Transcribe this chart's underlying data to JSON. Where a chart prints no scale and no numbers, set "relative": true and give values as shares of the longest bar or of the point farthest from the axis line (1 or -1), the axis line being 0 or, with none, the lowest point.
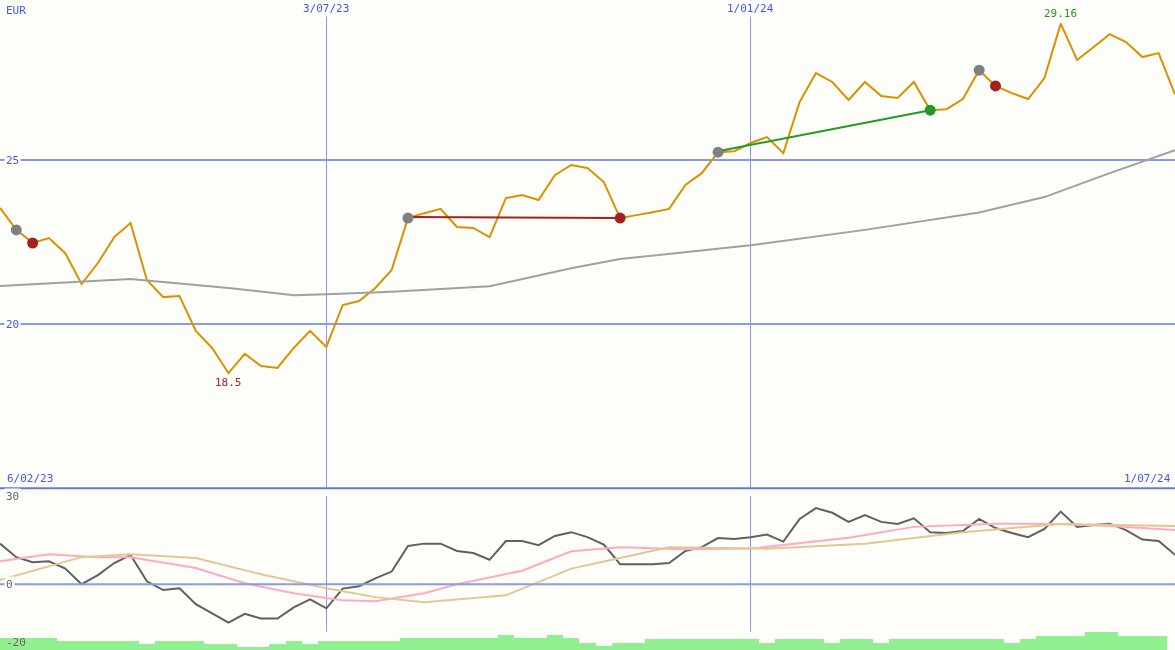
{
  "chart_data": [
    {
      "type": "line",
      "ylabel": "EUR",
      "x": [
        "2023-02-13",
        "2023-02-20",
        "2023-02-27",
        "2023-03-06",
        "2023-03-13",
        "2023-03-20",
        "2023-03-27",
        "2023-04-03",
        "2023-04-10",
        "2023-04-17",
        "2023-04-24",
        "2023-05-01",
        "2023-05-08",
        "2023-05-15",
        "2023-05-22",
        "2023-05-29",
        "2023-06-05",
        "2023-06-12",
        "2023-06-19",
        "2023-06-26",
        "2023-07-03",
        "2023-07-10",
        "2023-07-17",
        "2023-07-24",
        "2023-07-31",
        "2023-08-07",
        "2023-08-14",
        "2023-08-21",
        "2023-08-28",
        "2023-09-04",
        "2023-09-11",
        "2023-09-18",
        "2023-09-25",
        "2023-10-02",
        "2023-10-09",
        "2023-10-16",
        "2023-10-23",
        "2023-10-30",
        "2023-11-06",
        "2023-11-13",
        "2023-11-20",
        "2023-11-27",
        "2023-12-04",
        "2023-12-11",
        "2023-12-18",
        "2023-12-25",
        "2024-01-01",
        "2024-01-08",
        "2024-01-15",
        "2024-01-22",
        "2024-01-29",
        "2024-02-05",
        "2024-02-12",
        "2024-02-19",
        "2024-02-26",
        "2024-03-04",
        "2024-03-11",
        "2024-03-18",
        "2024-03-25",
        "2024-04-01",
        "2024-04-08",
        "2024-04-15",
        "2024-04-22",
        "2024-04-29",
        "2024-05-06",
        "2024-05-13",
        "2024-05-20",
        "2024-05-27",
        "2024-06-03",
        "2024-06-10",
        "2024-06-17",
        "2024-06-24",
        "2024-07-01"
      ],
      "xlim": [
        "2023-02-13",
        "2024-07-01"
      ],
      "xticks": [
        {
          "value": "2023-07-03",
          "label": "3/07/23"
        },
        {
          "value": "2024-01-01",
          "label": "1/01/24"
        }
      ],
      "ylim": [
        15.03,
        29.88
      ],
      "yticks": [
        20,
        25
      ],
      "grid": true,
      "annotations": [
        "6/02/23",
        "1/07/24",
        {
          "text": "18.5",
          "x": "2023-05-22",
          "y": 18.5
        },
        "29.16"
      ],
      "series": [
        {
          "color": "#d99100",
          "marker": "none",
          "values": [
            23.54,
            22.87,
            22.47,
            22.62,
            22.16,
            21.22,
            21.86,
            22.65,
            23.08,
            21.34,
            20.82,
            20.85,
            19.79,
            19.27,
            18.5,
            19.09,
            18.72,
            18.66,
            19.27,
            19.79,
            19.3,
            20.58,
            20.7,
            21.1,
            21.65,
            23.23,
            23.38,
            23.51,
            22.96,
            22.93,
            22.65,
            23.84,
            23.93,
            23.78,
            24.54,
            24.85,
            24.76,
            24.33,
            23.23,
            23.32,
            23.41,
            23.51,
            24.24,
            24.6,
            25.24,
            25.27,
            25.52,
            25.7,
            25.21,
            26.77,
            27.65,
            27.38,
            26.83,
            27.38,
            26.95,
            26.89,
            27.38,
            26.52,
            26.55,
            26.86,
            27.74,
            27.26,
            27.04,
            26.86,
            27.5,
            29.16,
            28.05,
            28.44,
            28.84,
            28.6,
            28.14,
            28.26,
            27.0
          ]
        },
        {
          "color": "#a0a0a0",
          "marker": "none",
          "x": [
            "2023-02-13",
            "2023-04-10",
            "2023-05-22",
            "2023-06-19",
            "2023-07-03",
            "2023-07-31",
            "2023-09-11",
            "2023-10-16",
            "2023-11-06",
            "2024-01-01",
            "2024-02-19",
            "2024-04-08",
            "2024-05-06",
            "2024-06-03",
            "2024-07-01"
          ],
          "values": [
            21.16,
            21.37,
            21.1,
            20.88,
            20.91,
            20.98,
            21.15,
            21.7,
            21.98,
            22.4,
            22.87,
            23.4,
            23.87,
            24.6,
            25.3
          ]
        },
        {
          "color": "#a52020",
          "marker": "none",
          "x": [
            "2023-08-07",
            "2023-11-06"
          ],
          "values": [
            23.26,
            23.23
          ]
        },
        {
          "color": "#229922",
          "marker": "none",
          "x": [
            "2023-12-18",
            "2024-03-18"
          ],
          "values": [
            25.27,
            26.52
          ]
        },
        {
          "type": "scatter",
          "marker": "circle",
          "color": "#808080",
          "x": [
            "2023-02-20",
            "2023-08-07",
            "2023-12-18",
            "2024-04-08"
          ],
          "values": [
            22.87,
            23.23,
            25.24,
            27.74
          ]
        },
        {
          "type": "scatter",
          "marker": "circle",
          "colors": [
            "#a52020",
            "#a52020",
            "#229922",
            "#a52020"
          ],
          "x": [
            "2023-02-27",
            "2023-11-06",
            "2024-03-18",
            "2024-04-15"
          ],
          "values": [
            22.47,
            23.23,
            26.52,
            27.26
          ]
        }
      ]
    },
    {
      "type": "line",
      "x": [
        "2023-02-13",
        "2023-02-20",
        "2023-02-27",
        "2023-03-06",
        "2023-03-13",
        "2023-03-20",
        "2023-03-27",
        "2023-04-03",
        "2023-04-10",
        "2023-04-17",
        "2023-04-24",
        "2023-05-01",
        "2023-05-08",
        "2023-05-15",
        "2023-05-22",
        "2023-05-29",
        "2023-06-05",
        "2023-06-12",
        "2023-06-19",
        "2023-06-26",
        "2023-07-03",
        "2023-07-10",
        "2023-07-17",
        "2023-07-24",
        "2023-07-31",
        "2023-08-07",
        "2023-08-14",
        "2023-08-21",
        "2023-08-28",
        "2023-09-04",
        "2023-09-11",
        "2023-09-18",
        "2023-09-25",
        "2023-10-02",
        "2023-10-09",
        "2023-10-16",
        "2023-10-23",
        "2023-10-30",
        "2023-11-06",
        "2023-11-13",
        "2023-11-20",
        "2023-11-27",
        "2023-12-04",
        "2023-12-11",
        "2023-12-18",
        "2023-12-25",
        "2024-01-01",
        "2024-01-08",
        "2024-01-15",
        "2024-01-22",
        "2024-01-29",
        "2024-02-05",
        "2024-02-12",
        "2024-02-19",
        "2024-02-26",
        "2024-03-04",
        "2024-03-11",
        "2024-03-18",
        "2024-03-25",
        "2024-04-01",
        "2024-04-08",
        "2024-04-15",
        "2024-04-22",
        "2024-04-29",
        "2024-05-06",
        "2024-05-13",
        "2024-05-20",
        "2024-05-27",
        "2024-06-03",
        "2024-06-10",
        "2024-06-17",
        "2024-06-24",
        "2024-07-01"
      ],
      "xlim": [
        "2023-02-13",
        "2024-07-01"
      ],
      "xticks": [
        {
          "value": "2023-07-03",
          "label": null
        },
        {
          "value": "2024-01-01",
          "label": null
        }
      ],
      "ylim": [
        -20,
        30
      ],
      "yticks": [
        30,
        0,
        -20
      ],
      "grid": "x",
      "tick_labels": "y",
      "ref_lines": [
        {
          "axis": "y",
          "value": 0,
          "color": "#8899ee"
        }
      ],
      "series": [
        {
          "color": "#606060",
          "values": [
            13.8,
            9.2,
            7.5,
            7.8,
            5.3,
            0,
            3.1,
            7.2,
            9.9,
            1.0,
            -2.0,
            -1.4,
            -6.8,
            -9.9,
            -13.1,
            -10.1,
            -11.7,
            -11.7,
            -7.9,
            -5.2,
            -8.2,
            -1.5,
            -0.7,
            2.0,
            4.3,
            13.0,
            13.8,
            13.8,
            11.3,
            10.6,
            8.3,
            14.7,
            14.7,
            13.3,
            16.4,
            17.7,
            16.0,
            13.5,
            6.8,
            6.8,
            6.8,
            7.2,
            11.3,
            12.6,
            15.7,
            15.4,
            16.0,
            16.9,
            14.5,
            22.2,
            25.9,
            24.3,
            21.2,
            23.5,
            21.2,
            20.5,
            22.4,
            17.7,
            17.4,
            18.1,
            22.2,
            19.1,
            17.4,
            16.0,
            18.8,
            24.7,
            19.5,
            20.1,
            20.6,
            18.4,
            15.2,
            14.7,
            10
          ]
        },
        {
          "color": "#ffaac0",
          "x": [
            "2023-02-13",
            "2023-03-06",
            "2023-03-27",
            "2023-04-10",
            "2023-05-08",
            "2023-05-29",
            "2023-06-19",
            "2023-07-10",
            "2023-07-24",
            "2023-08-14",
            "2023-08-28",
            "2023-09-25",
            "2023-10-16",
            "2023-11-06",
            "2023-12-04",
            "2024-01-01",
            "2024-02-12",
            "2024-03-11",
            "2024-04-15",
            "2024-05-13",
            "2024-06-03",
            "2024-07-01"
          ],
          "values": [
            7.8,
            10.2,
            9.2,
            9.2,
            5.5,
            0.3,
            -3.1,
            -5.5,
            -5.8,
            -3.1,
            0,
            4.6,
            11.2,
            12.6,
            11.9,
            12.1,
            15.8,
            19.5,
            20.6,
            20.5,
            19.8,
            18.4
          ]
        },
        {
          "color": "#e0c890",
          "x": [
            "2023-02-13",
            "2023-03-20",
            "2023-04-10",
            "2023-05-08",
            "2023-06-05",
            "2023-07-03",
            "2023-07-24",
            "2023-08-14",
            "2023-09-18",
            "2023-10-16",
            "2023-10-30",
            "2023-11-27",
            "2024-01-08",
            "2024-02-19",
            "2024-04-01",
            "2024-05-13",
            "2024-07-01"
          ],
          "values": [
            1.4,
            9.2,
            10.2,
            8.9,
            3.4,
            -1.4,
            -4.4,
            -6.1,
            -3.8,
            5.3,
            7.7,
            12.6,
            12.1,
            13.8,
            17.7,
            20.5,
            19.8
          ]
        }
      ]
    },
    {
      "type": "bar",
      "relative": true,
      "tick_labels": false,
      "color": "#90f090",
      "x": [
        "2023-02-13",
        "2023-02-20",
        "2023-02-27",
        "2023-03-06",
        "2023-03-13",
        "2023-03-20",
        "2023-03-27",
        "2023-04-03",
        "2023-04-10",
        "2023-04-17",
        "2023-04-24",
        "2023-05-01",
        "2023-05-08",
        "2023-05-15",
        "2023-05-22",
        "2023-05-29",
        "2023-06-05",
        "2023-06-12",
        "2023-06-19",
        "2023-06-26",
        "2023-07-03",
        "2023-07-10",
        "2023-07-17",
        "2023-07-24",
        "2023-07-31",
        "2023-08-07",
        "2023-08-14",
        "2023-08-21",
        "2023-08-28",
        "2023-09-04",
        "2023-09-11",
        "2023-09-18",
        "2023-09-25",
        "2023-10-02",
        "2023-10-09",
        "2023-10-16",
        "2023-10-23",
        "2023-10-30",
        "2023-11-06",
        "2023-11-13",
        "2023-11-20",
        "2023-11-27",
        "2023-12-04",
        "2023-12-11",
        "2023-12-18",
        "2023-12-25",
        "2024-01-01",
        "2024-01-08",
        "2024-01-15",
        "2024-01-22",
        "2024-01-29",
        "2024-02-05",
        "2024-02-12",
        "2024-02-19",
        "2024-02-26",
        "2024-03-04",
        "2024-03-11",
        "2024-03-18",
        "2024-03-25",
        "2024-04-01",
        "2024-04-08",
        "2024-04-15",
        "2024-04-22",
        "2024-04-29",
        "2024-05-06",
        "2024-05-13",
        "2024-05-20",
        "2024-05-27",
        "2024-06-03",
        "2024-06-10",
        "2024-06-17",
        "2024-06-24"
      ],
      "xlim": [
        "2023-02-13",
        "2024-07-01"
      ],
      "values": [
        0.68,
        0.68,
        0.68,
        0.68,
        0.5,
        0.5,
        0.5,
        0.5,
        0.5,
        0.32,
        0.5,
        0.5,
        0.5,
        0.32,
        0.32,
        0.18,
        0.18,
        0.32,
        0.5,
        0.32,
        0.5,
        0.5,
        0.5,
        0.5,
        0.5,
        0.68,
        0.68,
        0.68,
        0.68,
        0.68,
        0.68,
        0.82,
        0.68,
        0.68,
        0.82,
        0.68,
        0.38,
        0.24,
        0.38,
        0.38,
        0.59,
        0.59,
        0.59,
        0.59,
        0.59,
        0.59,
        0.59,
        0.38,
        0.59,
        0.59,
        0.59,
        0.38,
        0.59,
        0.59,
        0.38,
        0.59,
        0.59,
        0.59,
        0.59,
        0.59,
        0.59,
        0.59,
        0.38,
        0.59,
        0.76,
        0.76,
        0.76,
        1,
        1,
        0.76,
        0.76,
        0.76
      ]
    }
  ]
}
